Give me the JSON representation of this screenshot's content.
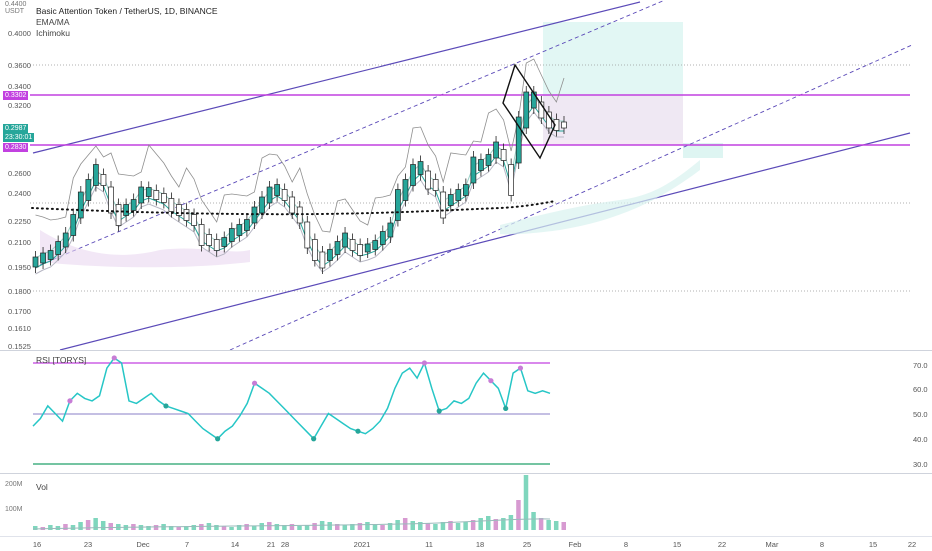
{
  "header": {
    "title": "Basic Attention Token / TetherUS, 1D, BINANCE",
    "indicators": [
      "EMA/MA",
      "Ichimoku"
    ],
    "currency_top": "0.4400",
    "currency_unit": "USDT"
  },
  "price_axis": {
    "ticks": [
      "0.4000",
      "0.3600",
      "0.3400",
      "0.3200",
      "0.2600",
      "0.2400",
      "0.2250",
      "0.2100",
      "0.1950",
      "0.1800",
      "0.1700",
      "0.1610",
      "0.1525"
    ],
    "price_tag": "0.2987",
    "countdown": "23:30:01",
    "hline_upper": "0.3302",
    "hline_lower": "0.2830"
  },
  "rsi": {
    "label": "RSI [TORYS]",
    "ticks": [
      "70.0",
      "60.0",
      "50.0",
      "40.0",
      "30.0"
    ],
    "values": [
      45,
      48,
      53,
      50,
      47,
      55,
      58,
      56,
      55,
      57,
      68,
      72,
      70,
      55,
      54,
      56,
      58,
      55,
      53,
      52,
      51,
      50,
      47,
      44,
      42,
      40,
      43,
      45,
      49,
      54,
      62,
      60,
      58,
      55,
      52,
      49,
      46,
      43,
      40,
      45,
      50,
      48,
      46,
      44,
      43,
      42,
      44,
      47,
      52,
      60,
      66,
      68,
      64,
      70,
      60,
      51,
      52,
      55,
      54,
      56,
      62,
      66,
      63,
      60,
      52,
      66,
      68,
      59,
      58,
      59,
      58
    ]
  },
  "volume": {
    "label": "Vol",
    "ticks": [
      "200M",
      "100M"
    ]
  },
  "time_axis": {
    "ticks": [
      "16",
      "23",
      "Dec",
      "7",
      "14",
      "21",
      "28",
      "2021",
      "11",
      "18",
      "25",
      "Feb",
      "8",
      "15",
      "22",
      "Mar",
      "8",
      "15",
      "22"
    ]
  },
  "colors": {
    "up": "#26a69a",
    "down": "#ef5350",
    "channel": "#5b4ab8",
    "hline": "#c241e0",
    "rsi": "#26c6c6",
    "rsi_band": "#c241e0",
    "rsi_low": "#22a06b"
  }
}
